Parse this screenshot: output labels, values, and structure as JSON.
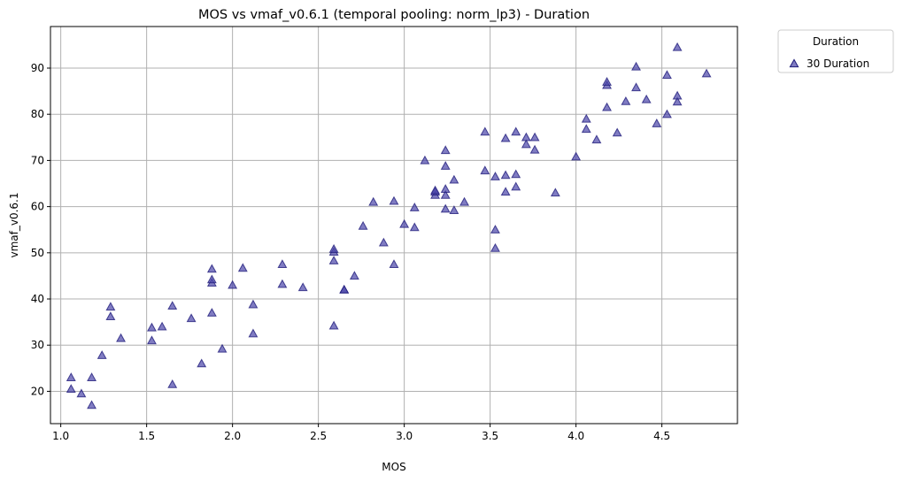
{
  "chart_data": {
    "type": "scatter",
    "title": "MOS vs vmaf_v0.6.1 (temporal pooling: norm_lp3) - Duration",
    "xlabel": "MOS",
    "ylabel": "vmaf_v0.6.1",
    "xlim": [
      0.94,
      4.94
    ],
    "ylim": [
      13,
      99
    ],
    "xticks": [
      "1.0",
      "1.5",
      "2.0",
      "2.5",
      "3.0",
      "3.5",
      "4.0",
      "4.5"
    ],
    "yticks": [
      "20",
      "30",
      "40",
      "50",
      "60",
      "70",
      "80",
      "90"
    ],
    "grid": true,
    "legend": {
      "title": "Duration",
      "placement": "outside-top-right",
      "entries": [
        "30 Duration"
      ]
    },
    "marker": "triangle",
    "color": "#4a45a8",
    "edge_color": "#1f1b7a",
    "series": [
      {
        "name": "30 Duration",
        "points": [
          [
            1.06,
            20.5
          ],
          [
            1.06,
            23.0
          ],
          [
            1.12,
            19.5
          ],
          [
            1.18,
            17.0
          ],
          [
            1.18,
            23.0
          ],
          [
            1.24,
            27.8
          ],
          [
            1.29,
            36.2
          ],
          [
            1.29,
            38.3
          ],
          [
            1.35,
            31.5
          ],
          [
            1.53,
            31.0
          ],
          [
            1.53,
            33.8
          ],
          [
            1.59,
            34.0
          ],
          [
            1.65,
            21.5
          ],
          [
            1.65,
            38.5
          ],
          [
            1.76,
            35.8
          ],
          [
            1.82,
            26.0
          ],
          [
            1.88,
            37.0
          ],
          [
            1.88,
            43.5
          ],
          [
            1.88,
            44.2
          ],
          [
            1.88,
            46.5
          ],
          [
            1.94,
            29.2
          ],
          [
            2.0,
            43.0
          ],
          [
            2.06,
            46.7
          ],
          [
            2.12,
            32.5
          ],
          [
            2.12,
            38.8
          ],
          [
            2.29,
            43.2
          ],
          [
            2.29,
            47.5
          ],
          [
            2.41,
            42.5
          ],
          [
            2.59,
            34.2
          ],
          [
            2.59,
            48.3
          ],
          [
            2.59,
            50.2
          ],
          [
            2.59,
            50.8
          ],
          [
            2.65,
            42.0
          ],
          [
            2.65,
            42.0
          ],
          [
            2.71,
            45.0
          ],
          [
            2.76,
            55.8
          ],
          [
            2.82,
            61.0
          ],
          [
            2.88,
            52.2
          ],
          [
            2.94,
            47.5
          ],
          [
            2.94,
            61.2
          ],
          [
            3.0,
            56.2
          ],
          [
            3.06,
            55.5
          ],
          [
            3.06,
            59.8
          ],
          [
            3.12,
            70.0
          ],
          [
            3.18,
            62.5
          ],
          [
            3.18,
            63.2
          ],
          [
            3.18,
            63.5
          ],
          [
            3.24,
            59.5
          ],
          [
            3.24,
            62.5
          ],
          [
            3.24,
            63.8
          ],
          [
            3.24,
            68.8
          ],
          [
            3.24,
            72.2
          ],
          [
            3.29,
            59.2
          ],
          [
            3.29,
            65.8
          ],
          [
            3.35,
            61.0
          ],
          [
            3.47,
            67.8
          ],
          [
            3.47,
            76.2
          ],
          [
            3.53,
            51.0
          ],
          [
            3.53,
            55.0
          ],
          [
            3.53,
            66.5
          ],
          [
            3.59,
            63.2
          ],
          [
            3.59,
            66.8
          ],
          [
            3.59,
            74.8
          ],
          [
            3.65,
            64.3
          ],
          [
            3.65,
            67.0
          ],
          [
            3.65,
            76.2
          ],
          [
            3.71,
            73.5
          ],
          [
            3.71,
            75.0
          ],
          [
            3.76,
            72.3
          ],
          [
            3.76,
            75.0
          ],
          [
            3.88,
            63.0
          ],
          [
            4.0,
            70.8
          ],
          [
            4.06,
            76.8
          ],
          [
            4.06,
            79.0
          ],
          [
            4.12,
            74.5
          ],
          [
            4.18,
            81.5
          ],
          [
            4.18,
            86.3
          ],
          [
            4.18,
            87.0
          ],
          [
            4.24,
            76.0
          ],
          [
            4.29,
            82.8
          ],
          [
            4.35,
            85.8
          ],
          [
            4.35,
            90.3
          ],
          [
            4.41,
            83.2
          ],
          [
            4.47,
            78.0
          ],
          [
            4.53,
            80.0
          ],
          [
            4.53,
            88.5
          ],
          [
            4.59,
            82.7
          ],
          [
            4.59,
            84.0
          ],
          [
            4.59,
            94.5
          ],
          [
            4.76,
            88.8
          ]
        ]
      }
    ]
  }
}
